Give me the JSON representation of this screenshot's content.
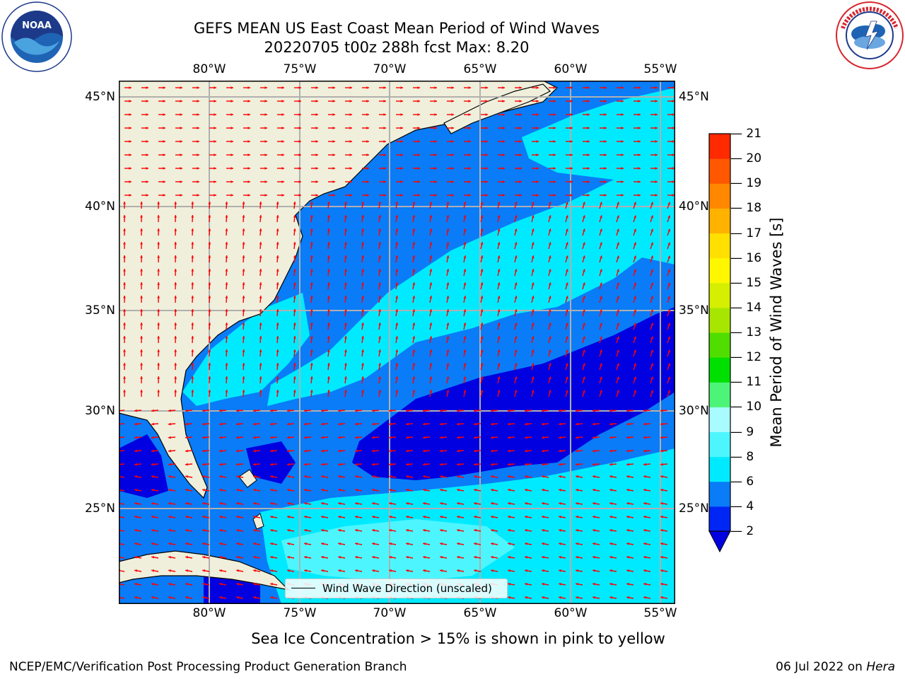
{
  "title": {
    "line1": "GEFS MEAN US East Coast Mean Period of Wind Waves",
    "line2": "20220705 t00z 288h fcst   Max: 8.20"
  },
  "lon_labels": [
    "80°W",
    "75°W",
    "70°W",
    "65°W",
    "60°W",
    "55°W"
  ],
  "lat_labels": [
    "45°N",
    "40°N",
    "35°N",
    "30°N",
    "25°N"
  ],
  "legend": {
    "label": "Wind Wave Direction (unscaled)"
  },
  "colorbar": {
    "label": "Mean Period of Wind Waves [s]",
    "ticks": [
      "2",
      "4",
      "6",
      "8",
      "9",
      "10",
      "11",
      "12",
      "13",
      "14",
      "15",
      "16",
      "17",
      "18",
      "19",
      "20",
      "21"
    ],
    "colors": [
      "#0026f5",
      "#0a7cf7",
      "#00eaff",
      "#4df6ff",
      "#a8fcff",
      "#4cf577",
      "#00e000",
      "#4fde00",
      "#a7e600",
      "#d6ef00",
      "#fff700",
      "#ffe000",
      "#ffb200",
      "#ff8800",
      "#ff5800",
      "#ff2a00",
      "#ff0000"
    ],
    "under_color": "#0000e0"
  },
  "subtitle": "Sea Ice Concentration > 15% is shown in pink to yellow",
  "footer": {
    "left": "NCEP/EMC/Verification Post Processing Product Generation Branch",
    "right_prefix": "06 Jul 2022 on ",
    "right_machine": "Hera"
  },
  "logos": {
    "left": "noaa-logo",
    "right": "nws-logo"
  },
  "colors": {
    "land": "#efefdb",
    "arrow": "#ff0000",
    "grid": "#b0b0b0"
  }
}
